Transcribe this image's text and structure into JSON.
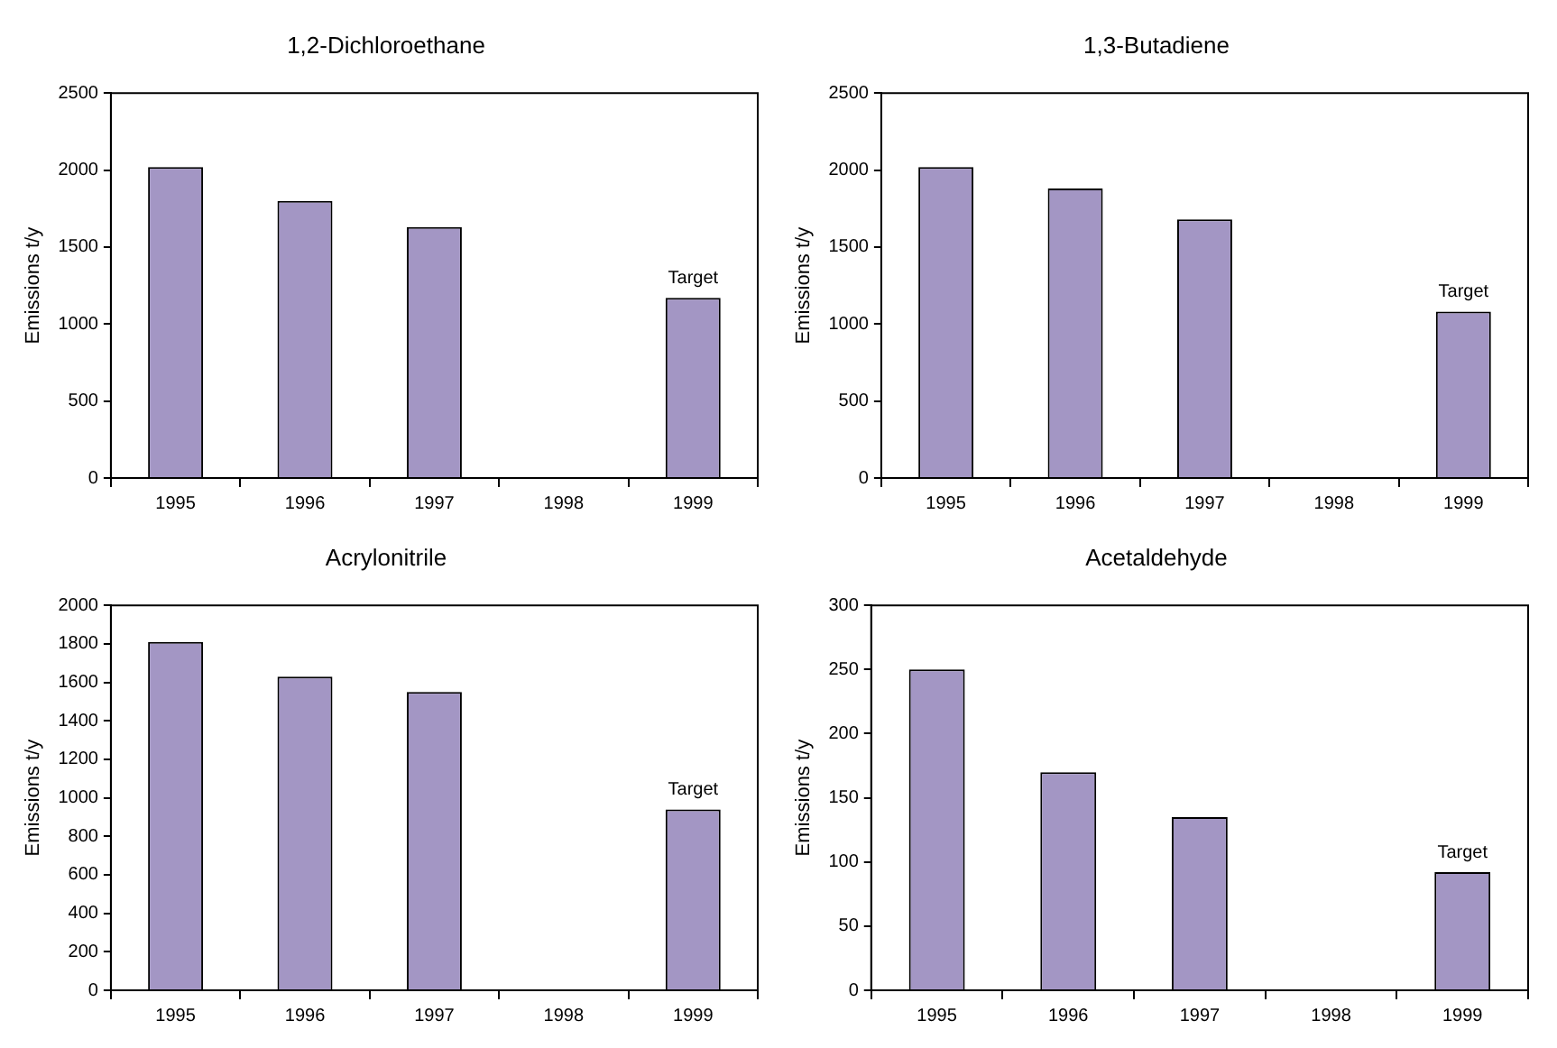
{
  "chart_data": [
    {
      "type": "bar",
      "title": "1,2-Dichloroethane",
      "ylabel": "Emissions t/y",
      "categories": [
        "1995",
        "1996",
        "1997",
        "1998",
        "1999"
      ],
      "values": [
        2020,
        1800,
        1630,
        null,
        1170
      ],
      "color": "#a396c4",
      "ylim": [
        0,
        2500
      ],
      "yticks": [
        0,
        500,
        1000,
        1500,
        2000,
        2500
      ],
      "grid": false,
      "annotations": [
        {
          "text": "Target",
          "x": "1999",
          "y": 1170
        }
      ]
    },
    {
      "type": "bar",
      "title": "1,3-Butadiene",
      "ylabel": "Emissions t/y",
      "categories": [
        "1995",
        "1996",
        "1997",
        "1998",
        "1999"
      ],
      "values": [
        2020,
        1880,
        1680,
        null,
        1080
      ],
      "color": "#a396c4",
      "ylim": [
        0,
        2500
      ],
      "yticks": [
        0,
        500,
        1000,
        1500,
        2000,
        2500
      ],
      "grid": false,
      "annotations": [
        {
          "text": "Target",
          "x": "1999",
          "y": 1080
        }
      ]
    },
    {
      "type": "bar",
      "title": "Acrylonitrile",
      "ylabel": "Emissions t/y",
      "categories": [
        "1995",
        "1996",
        "1997",
        "1998",
        "1999"
      ],
      "values": [
        1810,
        1630,
        1550,
        null,
        940
      ],
      "color": "#a396c4",
      "ylim": [
        0,
        2000
      ],
      "yticks": [
        0,
        200,
        400,
        600,
        800,
        1000,
        1200,
        1400,
        1600,
        1800,
        2000
      ],
      "grid": false,
      "annotations": [
        {
          "text": "Target",
          "x": "1999",
          "y": 940
        }
      ]
    },
    {
      "type": "bar",
      "title": "Acetaldehyde",
      "ylabel": "Emissions t/y",
      "categories": [
        "1995",
        "1996",
        "1997",
        "1998",
        "1999"
      ],
      "values": [
        250,
        170,
        135,
        null,
        92
      ],
      "color": "#a396c4",
      "ylim": [
        0,
        300
      ],
      "yticks": [
        0,
        50,
        100,
        150,
        200,
        250,
        300
      ],
      "grid": false,
      "annotations": [
        {
          "text": "Target",
          "x": "1999",
          "y": 92
        }
      ]
    }
  ]
}
